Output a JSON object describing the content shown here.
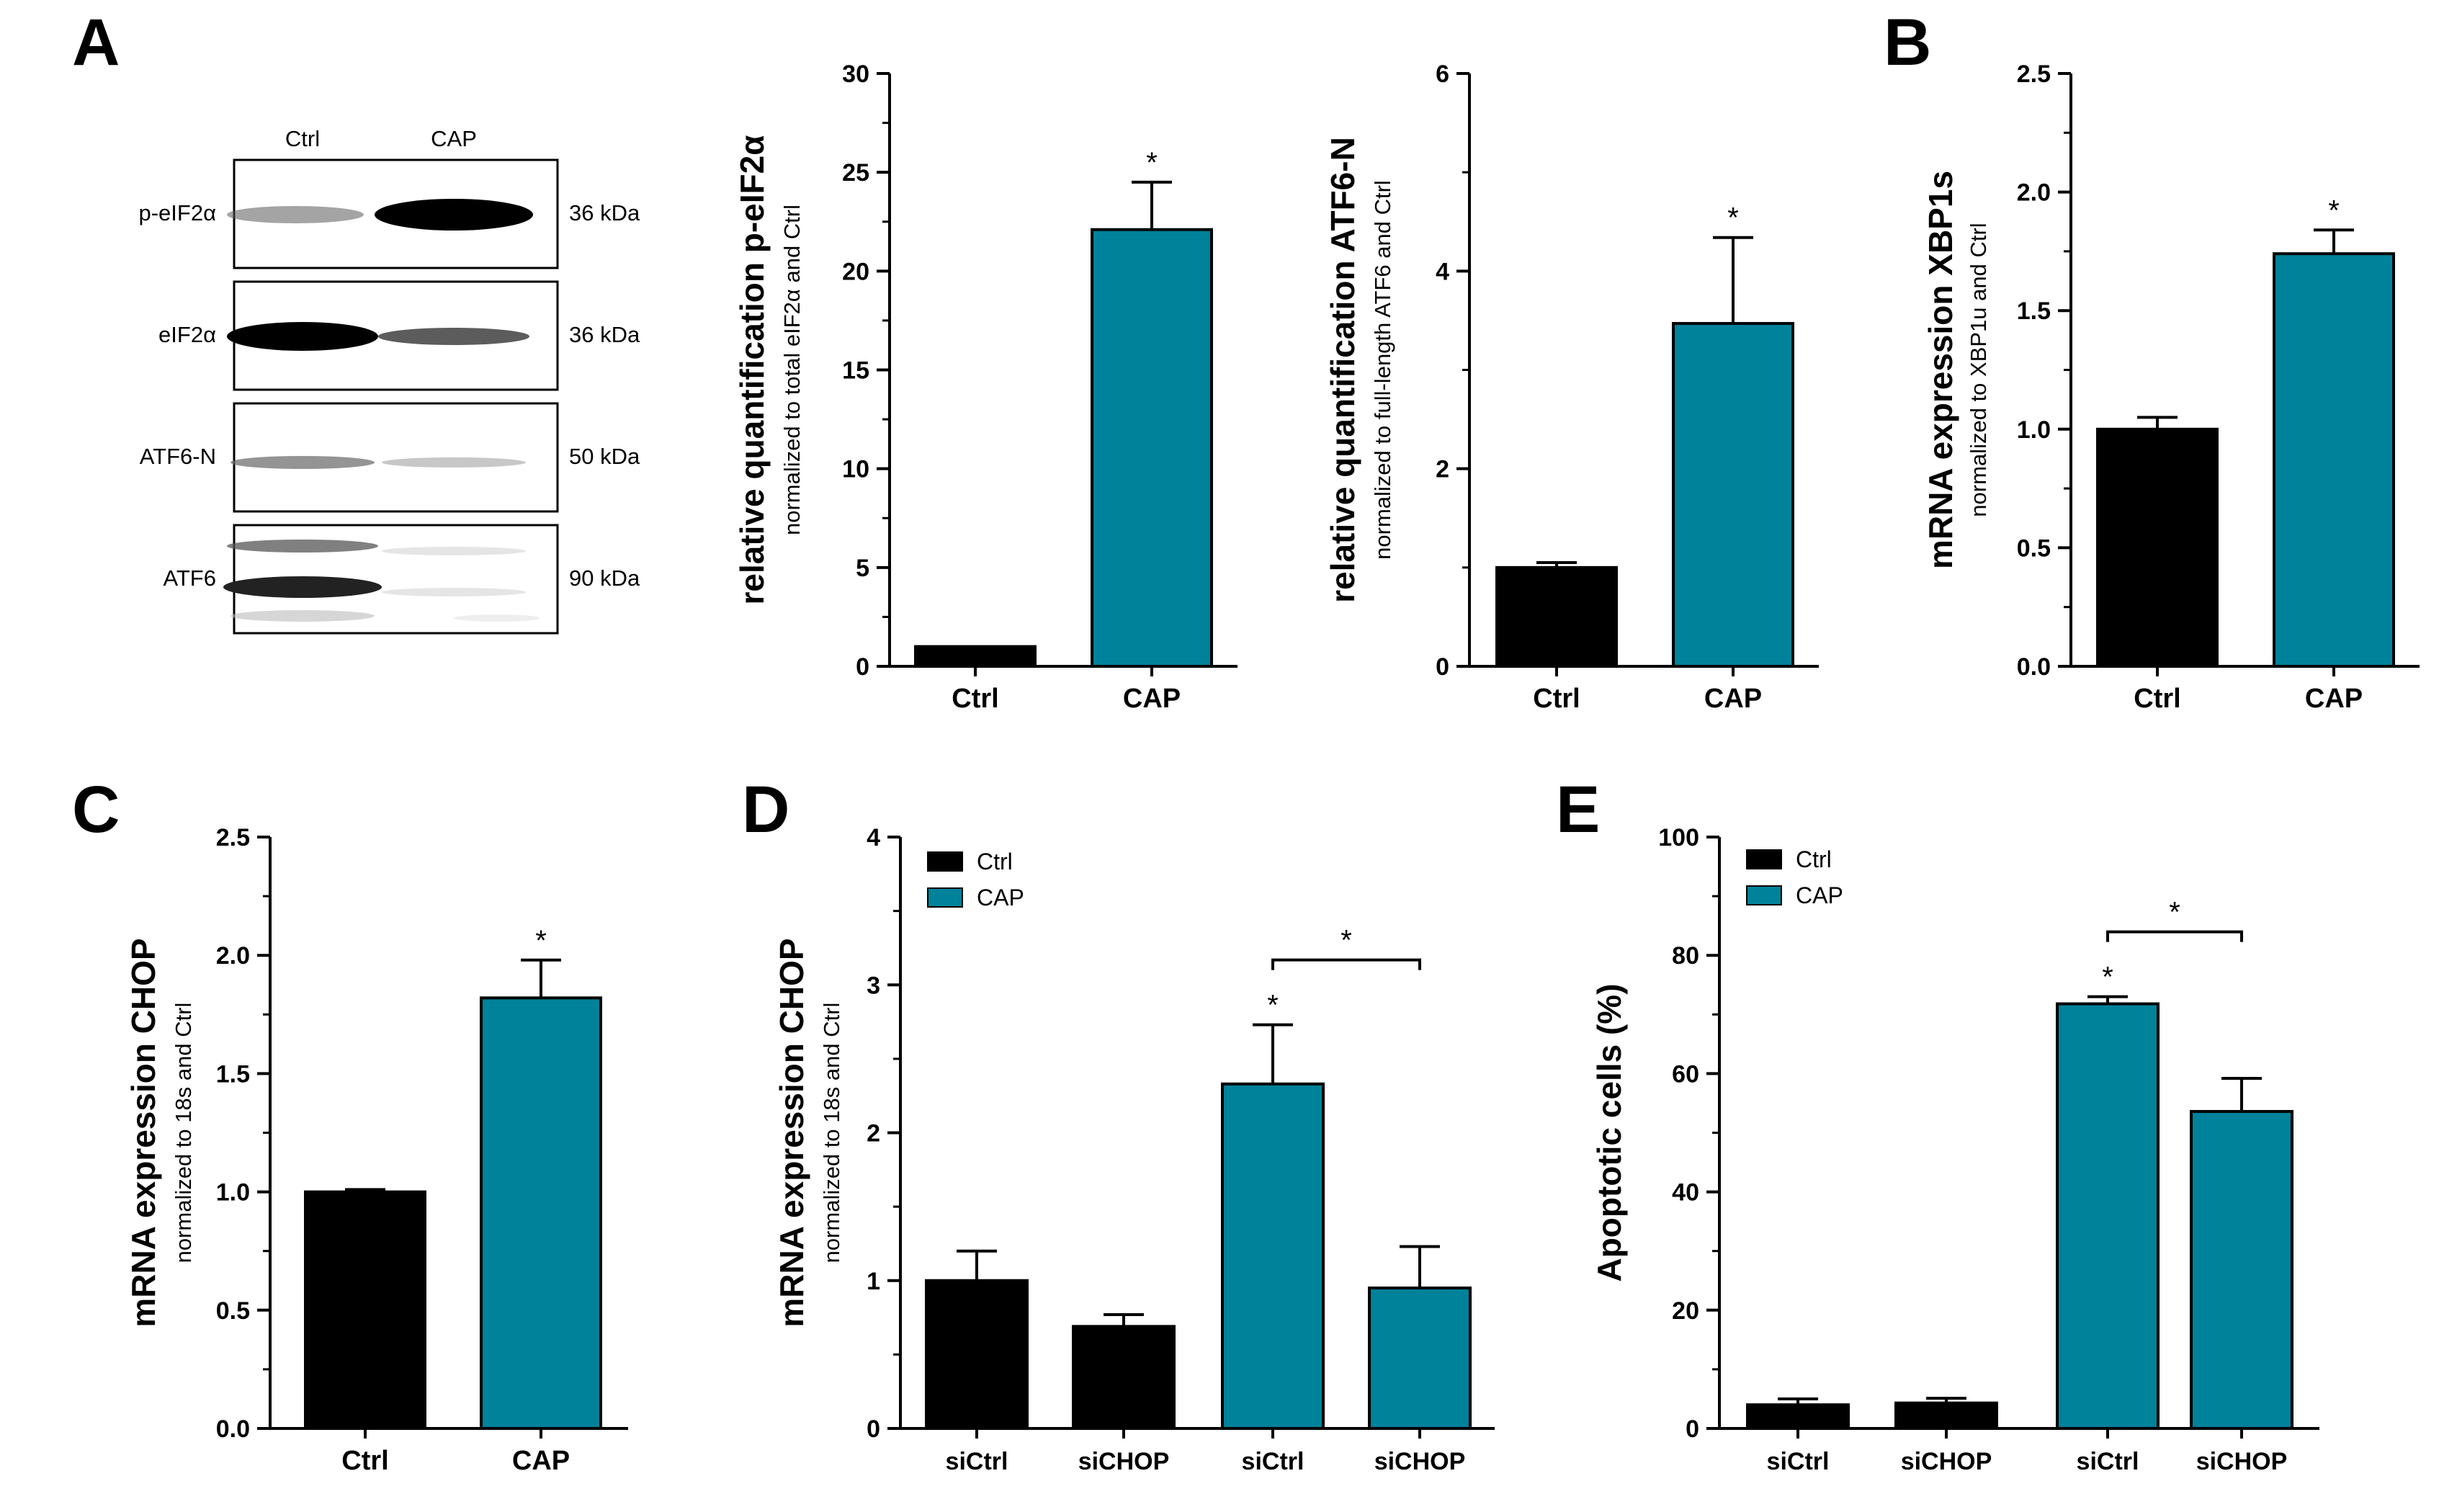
{
  "colors": {
    "ctrl": "#000000",
    "cap": "#00829A",
    "axis": "#000000"
  },
  "blot": {
    "panel_letter": "A",
    "columns": [
      "Ctrl",
      "CAP"
    ],
    "rows": [
      {
        "label": "p-eIF2α",
        "size": "36 kDa"
      },
      {
        "label": "eIF2α",
        "size": "36 kDa"
      },
      {
        "label": "ATF6-N",
        "size": "50 kDa"
      },
      {
        "label": "ATF6",
        "size": "90 kDa"
      }
    ]
  },
  "chart_data": [
    {
      "id": "peif2a",
      "panel_letter": "",
      "type": "bar",
      "title": "",
      "ylabel": "relative quantification p-eIF2α",
      "ysublabel": "normalized to total eIF2α and Ctrl",
      "categories": [
        "Ctrl",
        "CAP"
      ],
      "values": [
        1.0,
        22.1
      ],
      "errors": [
        0.0,
        2.4
      ],
      "colors": [
        "ctrl",
        "cap"
      ],
      "ylim": [
        0,
        30
      ],
      "yticks": [
        "0",
        "5",
        "10",
        "15",
        "20",
        "25",
        "30"
      ],
      "stars": [
        {
          "bar": 1,
          "text": "*"
        }
      ]
    },
    {
      "id": "atf6n",
      "panel_letter": "",
      "type": "bar",
      "title": "",
      "ylabel": "relative quantification ATF6-N",
      "ysublabel": "normalized to full-length ATF6 and Ctrl",
      "categories": [
        "Ctrl",
        "CAP"
      ],
      "values": [
        1.0,
        3.47
      ],
      "errors": [
        0.05,
        0.87
      ],
      "colors": [
        "ctrl",
        "cap"
      ],
      "ylim": [
        0,
        6
      ],
      "yticks": [
        "0",
        "2",
        "4",
        "6"
      ],
      "stars": [
        {
          "bar": 1,
          "text": "*"
        }
      ]
    },
    {
      "id": "xbp1s",
      "panel_letter": "B",
      "type": "bar",
      "title": "",
      "ylabel": "mRNA expression XBP1s",
      "ysublabel": "normalized to XBP1u and Ctrl",
      "categories": [
        "Ctrl",
        "CAP"
      ],
      "values": [
        1.0,
        1.74
      ],
      "errors": [
        0.05,
        0.1
      ],
      "colors": [
        "ctrl",
        "cap"
      ],
      "ylim": [
        0,
        2.5
      ],
      "yticks": [
        "0.0",
        "0.5",
        "1.0",
        "1.5",
        "2.0",
        "2.5"
      ],
      "stars": [
        {
          "bar": 1,
          "text": "*"
        }
      ]
    },
    {
      "id": "chop_c",
      "panel_letter": "C",
      "type": "bar",
      "title": "",
      "ylabel": "mRNA expression CHOP",
      "ysublabel": "normalized to 18s and Ctrl",
      "categories": [
        "Ctrl",
        "CAP"
      ],
      "values": [
        1.0,
        1.82
      ],
      "errors": [
        0.01,
        0.16
      ],
      "colors": [
        "ctrl",
        "cap"
      ],
      "ylim": [
        0,
        2.5
      ],
      "yticks": [
        "0.0",
        "0.5",
        "1.0",
        "1.5",
        "2.0",
        "2.5"
      ],
      "stars": [
        {
          "bar": 1,
          "text": "*"
        }
      ]
    },
    {
      "id": "chop_d",
      "panel_letter": "D",
      "type": "bar",
      "title": "",
      "ylabel": "mRNA expression CHOP",
      "ysublabel": "normalized to 18s and Ctrl",
      "categories": [
        "siCtrl",
        "siCHOP",
        "siCtrl",
        "siCHOP"
      ],
      "values": [
        1.0,
        0.69,
        2.33,
        0.95
      ],
      "errors": [
        0.2,
        0.08,
        0.4,
        0.28
      ],
      "colors": [
        "ctrl",
        "ctrl",
        "cap",
        "cap"
      ],
      "ylim": [
        0,
        4
      ],
      "yticks": [
        "0",
        "1",
        "2",
        "3",
        "4"
      ],
      "legend": [
        {
          "label": "Ctrl",
          "color": "ctrl"
        },
        {
          "label": "CAP",
          "color": "cap"
        }
      ],
      "legend_position": "top-left",
      "stars": [
        {
          "bar": 2,
          "text": "*"
        }
      ],
      "brackets": [
        {
          "from": 2,
          "to": 3,
          "text": "*"
        }
      ]
    },
    {
      "id": "apoptosis",
      "panel_letter": "E",
      "type": "bar",
      "title": "",
      "ylabel": "Apoptotic cells (%)",
      "ysublabel": "",
      "categories": [
        "siCtrl",
        "siCHOP",
        "siCtrl",
        "siCHOP"
      ],
      "values": [
        4.0,
        4.3,
        71.8,
        53.6
      ],
      "errors": [
        1.0,
        0.8,
        1.2,
        5.6
      ],
      "colors": [
        "ctrl",
        "ctrl",
        "cap",
        "cap"
      ],
      "ylim": [
        0,
        100
      ],
      "yticks": [
        "0",
        "20",
        "40",
        "60",
        "80",
        "100"
      ],
      "legend": [
        {
          "label": "Ctrl",
          "color": "ctrl"
        },
        {
          "label": "CAP",
          "color": "cap"
        }
      ],
      "legend_position": "top-left",
      "stars": [
        {
          "bar": 2,
          "text": "*"
        }
      ],
      "brackets": [
        {
          "from": 2,
          "to": 3,
          "text": "*"
        }
      ]
    }
  ]
}
